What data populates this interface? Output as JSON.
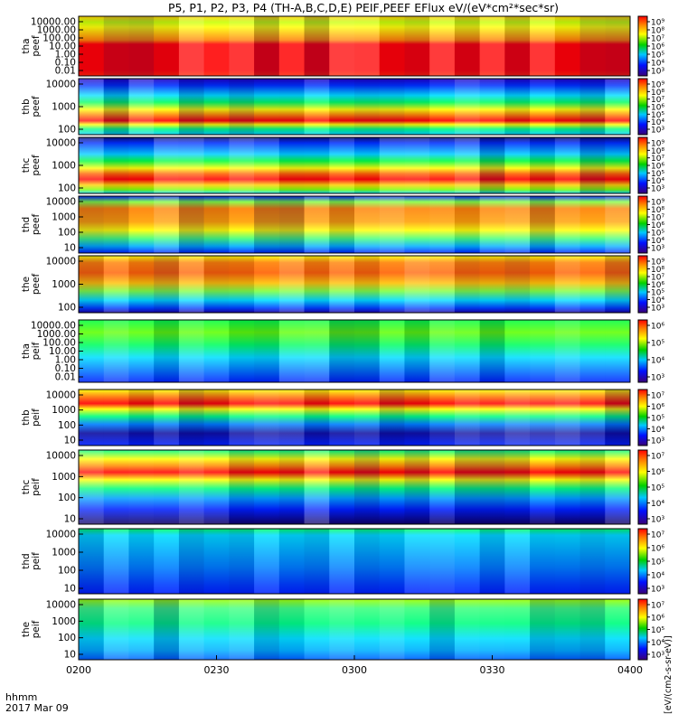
{
  "title": "P5, P1, P2, P3, P4 (TH-A,B,C,D,E) PEIF,PEEF EFlux eV/(eV*cm²*sec*sr)",
  "time_axis": {
    "label_line1": "hhmm",
    "label_line2": "2017 Mar 09",
    "ticks": [
      "0200",
      "0230",
      "0300",
      "0330",
      "0400"
    ]
  },
  "colorbar_unit_label": "[eV/(cm2-s-sr-eV)]",
  "colors": {
    "very_low": "#3a00a0",
    "low": "#0033ff",
    "mid": "#00d000",
    "high": "#ffff00",
    "very_high": "#ff0000"
  },
  "chart_data": [
    {
      "type": "heatmap",
      "panel": "tha peef",
      "ylabel": [
        "tha",
        "peef"
      ],
      "yticks": [
        "10000.00",
        "1000.00",
        "100.00",
        "10.00",
        "1.00",
        "0.10",
        "0.01"
      ],
      "colorbar_ticks": [
        "10⁹",
        "10⁸",
        "10⁷",
        "10⁶",
        "10⁵",
        "10⁴",
        "10³"
      ]
    },
    {
      "type": "heatmap",
      "panel": "thb peef",
      "ylabel": [
        "thb",
        "peef"
      ],
      "yticks": [
        "10000",
        "1000",
        "100"
      ],
      "colorbar_ticks": [
        "10⁹",
        "10⁸",
        "10⁷",
        "10⁶",
        "10⁵",
        "10⁴",
        "10³"
      ]
    },
    {
      "type": "heatmap",
      "panel": "thc peef",
      "ylabel": [
        "thc",
        "peef"
      ],
      "yticks": [
        "10000",
        "1000",
        "100"
      ],
      "colorbar_ticks": [
        "10⁹",
        "10⁸",
        "10⁷",
        "10⁶",
        "10⁵",
        "10⁴",
        "10³"
      ]
    },
    {
      "type": "heatmap",
      "panel": "thd peef",
      "ylabel": [
        "thd",
        "peef"
      ],
      "yticks": [
        "10000",
        "1000",
        "100",
        "10"
      ],
      "colorbar_ticks": [
        "10⁹",
        "10⁸",
        "10⁷",
        "10⁶",
        "10⁵",
        "10⁴",
        "10³"
      ]
    },
    {
      "type": "heatmap",
      "panel": "the peef",
      "ylabel": [
        "the",
        "peef"
      ],
      "yticks": [
        "10000",
        "1000",
        "100"
      ],
      "colorbar_ticks": [
        "10⁹",
        "10⁸",
        "10⁷",
        "10⁶",
        "10⁵",
        "10⁴",
        "10³"
      ]
    },
    {
      "type": "heatmap",
      "panel": "tha peif",
      "ylabel": [
        "tha",
        "peif"
      ],
      "yticks": [
        "10000.00",
        "1000.00",
        "100.00",
        "10.00",
        "1.00",
        "0.10",
        "0.01"
      ],
      "colorbar_ticks": [
        "10⁶",
        "10⁵",
        "10⁴",
        "10³"
      ]
    },
    {
      "type": "heatmap",
      "panel": "thb peif",
      "ylabel": [
        "thb",
        "peif"
      ],
      "yticks": [
        "10000",
        "1000",
        "100",
        "10"
      ],
      "colorbar_ticks": [
        "10⁷",
        "10⁶",
        "10⁵",
        "10⁴",
        "10³"
      ]
    },
    {
      "type": "heatmap",
      "panel": "thc peif",
      "ylabel": [
        "thc",
        "peif"
      ],
      "yticks": [
        "10000",
        "1000",
        "100",
        "10"
      ],
      "colorbar_ticks": [
        "10⁷",
        "10⁶",
        "10⁵",
        "10⁴",
        "10³"
      ]
    },
    {
      "type": "heatmap",
      "panel": "thd peif",
      "ylabel": [
        "thd",
        "peif"
      ],
      "yticks": [
        "10000",
        "1000",
        "100",
        "10"
      ],
      "colorbar_ticks": [
        "10⁷",
        "10⁶",
        "10⁵",
        "10⁴",
        "10³"
      ]
    },
    {
      "type": "heatmap",
      "panel": "the peif",
      "ylabel": [
        "the",
        "peif"
      ],
      "yticks": [
        "10000",
        "1000",
        "100",
        "10"
      ],
      "colorbar_ticks": [
        "10⁷",
        "10⁶",
        "10⁵",
        "10⁴",
        "10³"
      ]
    }
  ]
}
